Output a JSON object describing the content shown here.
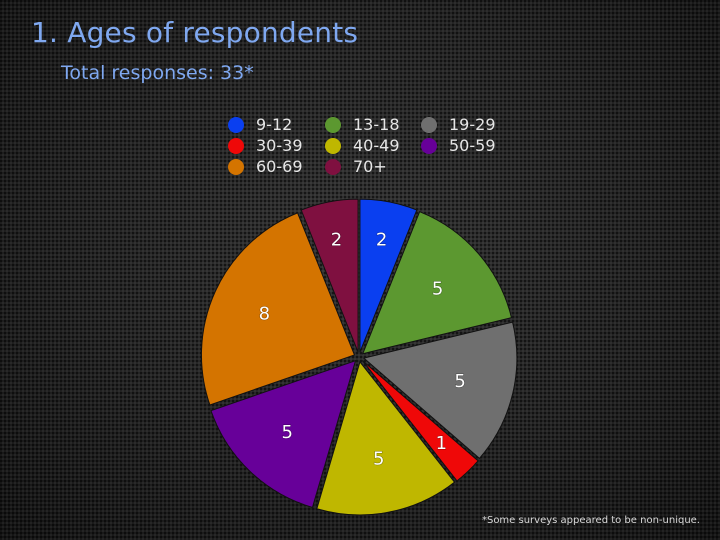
{
  "title": "1. Ages of respondents",
  "subtitle": "Total responses: 33*",
  "footnote": "*Some surveys appeared to be non-unique.",
  "chart_data": {
    "type": "pie",
    "title": "1. Ages of respondents",
    "subtitle": "Total responses: 33*",
    "legend_position": "top",
    "slices": [
      {
        "label": "9-12",
        "value": 2,
        "color": "#0a3ff0"
      },
      {
        "label": "13-18",
        "value": 5,
        "color": "#5c9830"
      },
      {
        "label": "19-29",
        "value": 5,
        "color": "#6f6f6f"
      },
      {
        "label": "30-39",
        "value": 1,
        "color": "#ef0808"
      },
      {
        "label": "40-49",
        "value": 5,
        "color": "#bfb700"
      },
      {
        "label": "50-59",
        "value": 5,
        "color": "#670099"
      },
      {
        "label": "60-69",
        "value": 8,
        "color": "#d47400"
      },
      {
        "label": "70+",
        "value": 2,
        "color": "#7f1040"
      }
    ]
  }
}
